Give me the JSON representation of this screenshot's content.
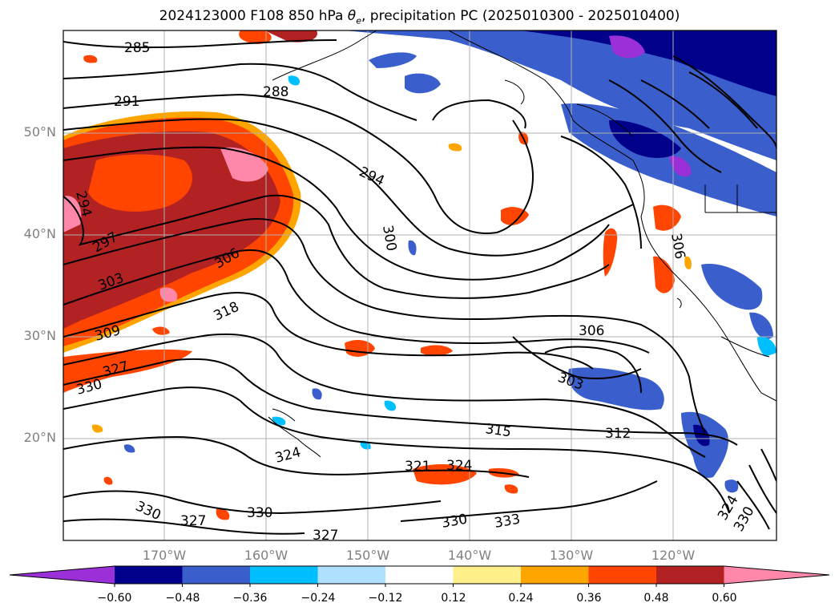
{
  "title": {
    "prefix": "2024123000 F108 850 hPa ",
    "symbol": "θ",
    "subscript": "e",
    "suffix": ", precipitation PC (2025010300 - 2025010400)"
  },
  "map": {
    "region": "North Pacific / US West Coast",
    "lat_ticks": [
      "50°N",
      "40°N",
      "30°N",
      "20°N"
    ],
    "lon_ticks": [
      "170°W",
      "160°W",
      "150°W",
      "140°W",
      "130°W",
      "120°W"
    ],
    "gridlines": true,
    "contour_labels": [
      "285",
      "291",
      "288",
      "294",
      "294",
      "297",
      "300",
      "303",
      "306",
      "309",
      "318",
      "327",
      "330",
      "306",
      "303",
      "315",
      "312",
      "324",
      "321",
      "324",
      "330",
      "327",
      "330",
      "327",
      "330",
      "333",
      "330",
      "324",
      "306"
    ]
  },
  "colorbar": {
    "colors": [
      "#9b30d9",
      "#00008b",
      "#3a5fcd",
      "#00bfff",
      "#b0e0ff",
      "#ffffff",
      "#ffef8a",
      "#ffa500",
      "#ff4500",
      "#b22222",
      "#ff88aa"
    ],
    "labels": [
      "−0.60",
      "−0.48",
      "−0.36",
      "−0.24",
      "−0.12",
      "0.12",
      "0.24",
      "0.36",
      "0.48",
      "0.60"
    ]
  }
}
